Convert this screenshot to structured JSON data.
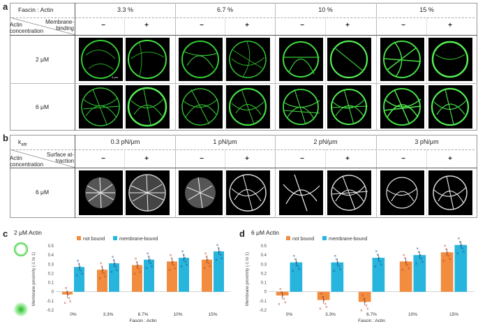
{
  "panel_a": {
    "letter": "a",
    "corner_top": "Fascin : Actin",
    "corner_right": "Membrane-\nbinding",
    "corner_left": "Actin\nconcentration",
    "columns": [
      "3.3 %",
      "6.7 %",
      "10 %",
      "15 %"
    ],
    "signs": [
      "−",
      "+"
    ],
    "rows": [
      "2 μM",
      "6 μM"
    ],
    "scale_label": "3 μm"
  },
  "panel_b": {
    "letter": "b",
    "corner_top": "k",
    "corner_top_sub": "attr",
    "corner_right": "Surface at-\ntraction",
    "corner_left": "Actin\nconcentration",
    "columns": [
      "0.3 pN/μm",
      "1 pN/μm",
      "2 pN/μm",
      "3 pN/μm"
    ],
    "signs": [
      "−",
      "+"
    ],
    "rows": [
      "6 μM"
    ]
  },
  "panel_c": {
    "letter": "c",
    "title": "2 μM Actin"
  },
  "panel_d": {
    "letter": "d",
    "title": "6 μM Actin"
  },
  "colors": {
    "not_bound": "#f28c3f",
    "membrane_bound": "#27b5de",
    "marker_nb": "#c1411f",
    "marker_mb": "#1f4f86"
  },
  "chart_data": [
    {
      "type": "bar",
      "title": "2 μM Actin",
      "xlabel": "Fascin : Actin",
      "ylabel": "Membrane proximity (-1 to 1)",
      "categories": [
        "0%",
        "3.3%",
        "6.7%",
        "10%",
        "15%"
      ],
      "ylim": [
        -0.2,
        0.5
      ],
      "yticks": [
        "0.5",
        "0.4",
        "0.3",
        "0.2",
        "0.1",
        "0",
        "-0.1",
        "-0.2"
      ],
      "legend": [
        "not bound",
        "membrane-bound"
      ],
      "series": [
        {
          "name": "not bound",
          "values": [
            -0.03,
            0.24,
            0.29,
            0.33,
            0.35
          ]
        },
        {
          "name": "membrane-bound",
          "values": [
            0.27,
            0.31,
            0.35,
            0.37,
            0.44
          ]
        }
      ]
    },
    {
      "type": "bar",
      "title": "6 μM Actin",
      "xlabel": "Fascin : Actin",
      "ylabel": "Membrane proximity (-1 to 1)",
      "categories": [
        "0%",
        "3.3%",
        "6.7%",
        "10%",
        "15%"
      ],
      "ylim": [
        -0.2,
        0.5
      ],
      "yticks": [
        "0.5",
        "0.4",
        "0.3",
        "0.2",
        "0.1",
        "0",
        "-0.1",
        "-0.2"
      ],
      "legend": [
        "not bound",
        "membrane-bound"
      ],
      "series": [
        {
          "name": "not bound",
          "values": [
            -0.04,
            -0.09,
            -0.11,
            0.33,
            0.43
          ]
        },
        {
          "name": "membrane-bound",
          "values": [
            0.32,
            0.32,
            0.37,
            0.4,
            0.51
          ]
        }
      ]
    }
  ]
}
